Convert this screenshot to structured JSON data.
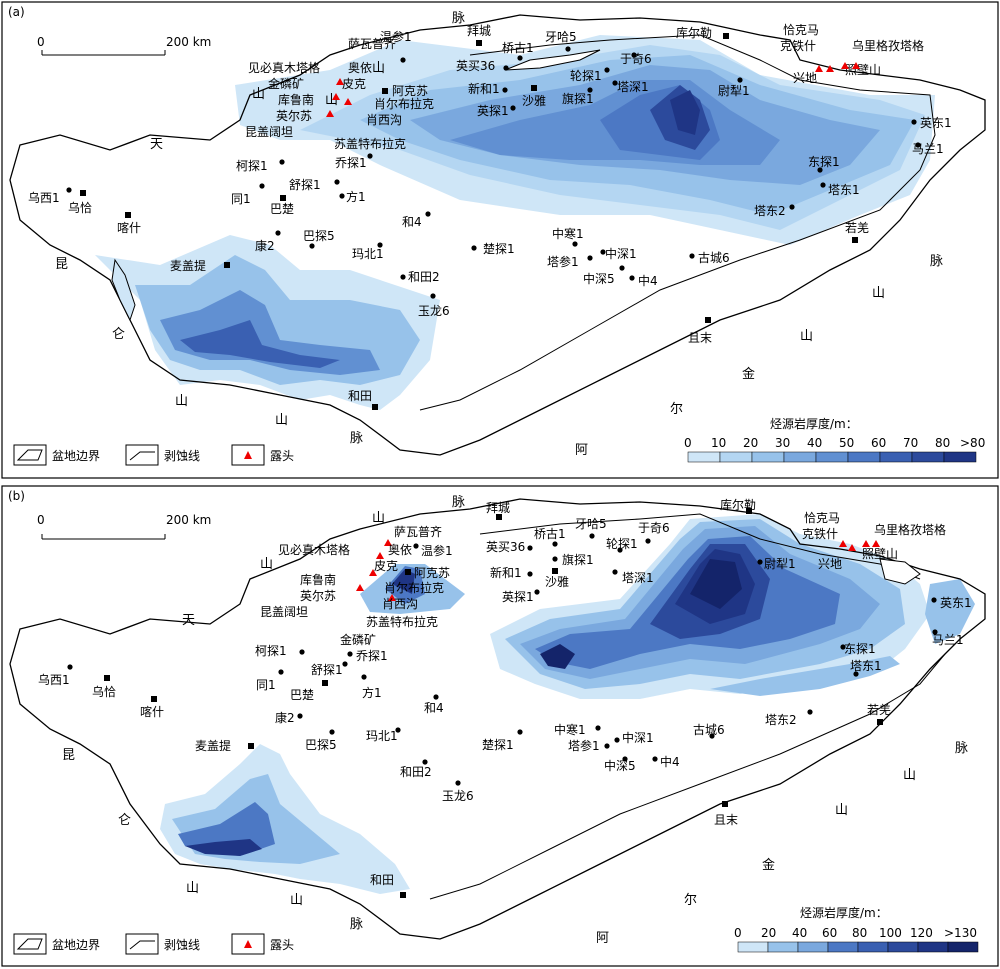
{
  "panels": [
    {
      "id": "a",
      "label": "(a)",
      "scale": {
        "zero": "0",
        "end": "200 km"
      },
      "legend": {
        "boundary": "盆地边界",
        "erosion": "剥蚀线",
        "outcrop": "露头"
      },
      "colorbar": {
        "title": "烃源岩厚度/m：",
        "ticks": [
          "0",
          "10",
          "20",
          "30",
          "40",
          "50",
          "60",
          "70",
          "80",
          ">80"
        ]
      },
      "mountains": [
        "山",
        "脉",
        "天",
        "山",
        "山",
        "昆",
        "仑",
        "山",
        "山",
        "脉",
        "阿",
        "尔",
        "金",
        "山",
        "山",
        "脉"
      ],
      "cities": [
        "拜城",
        "库尔勒",
        "阿克苏",
        "沙雅",
        "乌恰",
        "喀什",
        "巴楚",
        "麦盖提",
        "和田",
        "若羌",
        "且末",
        "兴地",
        "照壁山"
      ],
      "wells": [
        "牙哈5",
        "桥古1",
        "英买36",
        "温参1",
        "新和1",
        "英探1",
        "轮探1",
        "于奇6",
        "旗探1",
        "塔深1",
        "尉犁1",
        "英东1",
        "马兰1",
        "东探1",
        "塔东1",
        "塔东2",
        "柯探1",
        "乔探1",
        "舒探1",
        "同1",
        "方1",
        "和4",
        "乌西1",
        "康2",
        "巴探5",
        "玛北1",
        "楚探1",
        "中寒1",
        "中深1",
        "塔参1",
        "中深5",
        "中4",
        "古城6",
        "和田2",
        "玉龙6"
      ],
      "outcrops": [
        "萨瓦普齐",
        "奥依",
        "皮克",
        "见必真木塔格",
        "金磷矿",
        "库鲁南",
        "英尔苏",
        "肖尔布拉克",
        "肖西沟",
        "昆盖阔坦",
        "苏盖特布拉克",
        "恰克马",
        "克铁什",
        "乌里格孜塔格"
      ]
    },
    {
      "id": "b",
      "label": "(b)",
      "scale": {
        "zero": "0",
        "end": "200 km"
      },
      "legend": {
        "boundary": "盆地边界",
        "erosion": "剥蚀线",
        "outcrop": "露头"
      },
      "colorbar": {
        "title": "烃源岩厚度/m：",
        "ticks": [
          "0",
          "20",
          "40",
          "60",
          "80",
          "100",
          "120",
          ">130"
        ]
      },
      "mountains": [
        "山",
        "脉",
        "天",
        "山",
        "昆",
        "仑",
        "山",
        "山",
        "脉",
        "阿",
        "尔",
        "金",
        "山",
        "山",
        "脉"
      ],
      "cities": [
        "拜城",
        "库尔勒",
        "阿克苏",
        "沙雅",
        "乌恰",
        "喀什",
        "巴楚",
        "麦盖提",
        "和田",
        "若羌",
        "且末",
        "兴地",
        "照壁山"
      ],
      "wells": [
        "牙哈5",
        "桥古1",
        "英买36",
        "温参1",
        "新和1",
        "英探1",
        "轮探1",
        "于奇6",
        "旗探1",
        "塔深1",
        "尉犁1",
        "英东1",
        "马兰1",
        "东探1",
        "塔东1",
        "塔东2",
        "柯探1",
        "乔探1",
        "舒探1",
        "同1",
        "方1",
        "和4",
        "乌西1",
        "康2",
        "巴探5",
        "玛北1",
        "楚探1",
        "中寒1",
        "中深1",
        "塔参1",
        "中深5",
        "中4",
        "古城6",
        "和田2",
        "玉龙6"
      ],
      "outcrops": [
        "萨瓦普齐",
        "奥依",
        "皮克",
        "见必真木塔格",
        "金磷矿",
        "库鲁南",
        "英尔苏",
        "肖尔布拉克",
        "肖西沟",
        "昆盖阔坦",
        "苏盖特布拉克",
        "恰克马",
        "克铁什",
        "乌里格孜塔格"
      ]
    }
  ],
  "colors": {
    "c0": "#cfe6f7",
    "c1": "#b4d6f2",
    "c2": "#97c2ea",
    "c3": "#7aa8de",
    "c4": "#6190d2",
    "c5": "#4c78c4",
    "c6": "#3a60b2",
    "c7": "#2c4a9c",
    "c8": "#1f3585",
    "c9": "#14246a"
  }
}
